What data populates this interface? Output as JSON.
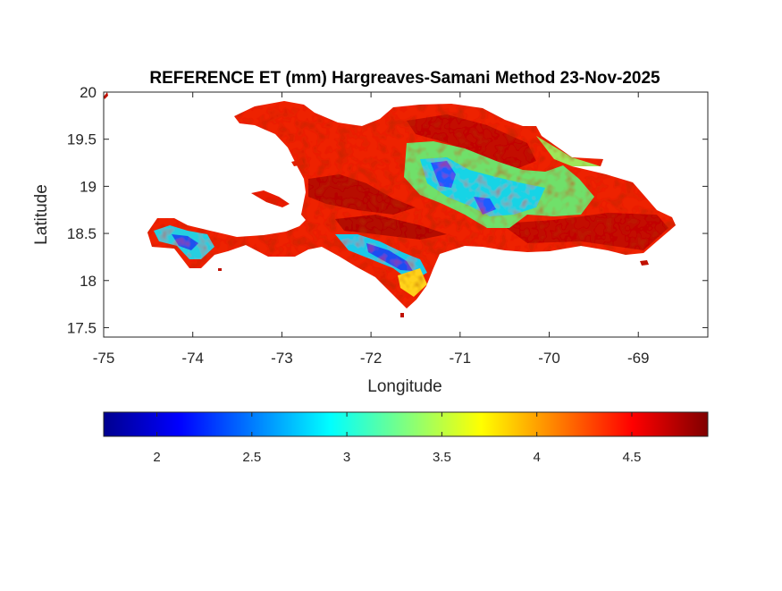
{
  "figure": {
    "title": "REFERENCE ET (mm) Hargreaves-Samani Method  23-Nov-2025"
  },
  "chart_data": {
    "type": "heatmap",
    "title": "REFERENCE ET (mm) Hargreaves-Samani Method  23-Nov-2025",
    "xlabel": "Longitude",
    "ylabel": "Latitude",
    "xlim": [
      -75,
      -68.22
    ],
    "ylim": [
      17.4,
      20
    ],
    "xticks": [
      -75,
      -74,
      -73,
      -72,
      -71,
      -70,
      -69
    ],
    "xtick_labels": [
      "-75",
      "-74",
      "-73",
      "-72",
      "-71",
      "-70",
      "-69"
    ],
    "yticks": [
      17.5,
      18,
      18.5,
      19,
      19.5,
      20
    ],
    "ytick_labels": [
      "17.5",
      "18",
      "18.5",
      "19",
      "19.5",
      "20"
    ],
    "grid": false,
    "colormap": "jet",
    "colorbar": {
      "orientation": "horizontal",
      "placement": "below",
      "range": [
        1.72,
        4.9
      ],
      "ticks": [
        2,
        2.5,
        3,
        3.5,
        4,
        4.5
      ],
      "tick_labels": [
        "2",
        "2.5",
        "3",
        "3.5",
        "4",
        "4.5"
      ]
    },
    "regions": [
      {
        "name": "",
        "value": 4.5
      },
      {
        "name": "",
        "value": 3.6
      },
      {
        "name": "",
        "value": 2.6
      }
    ]
  }
}
